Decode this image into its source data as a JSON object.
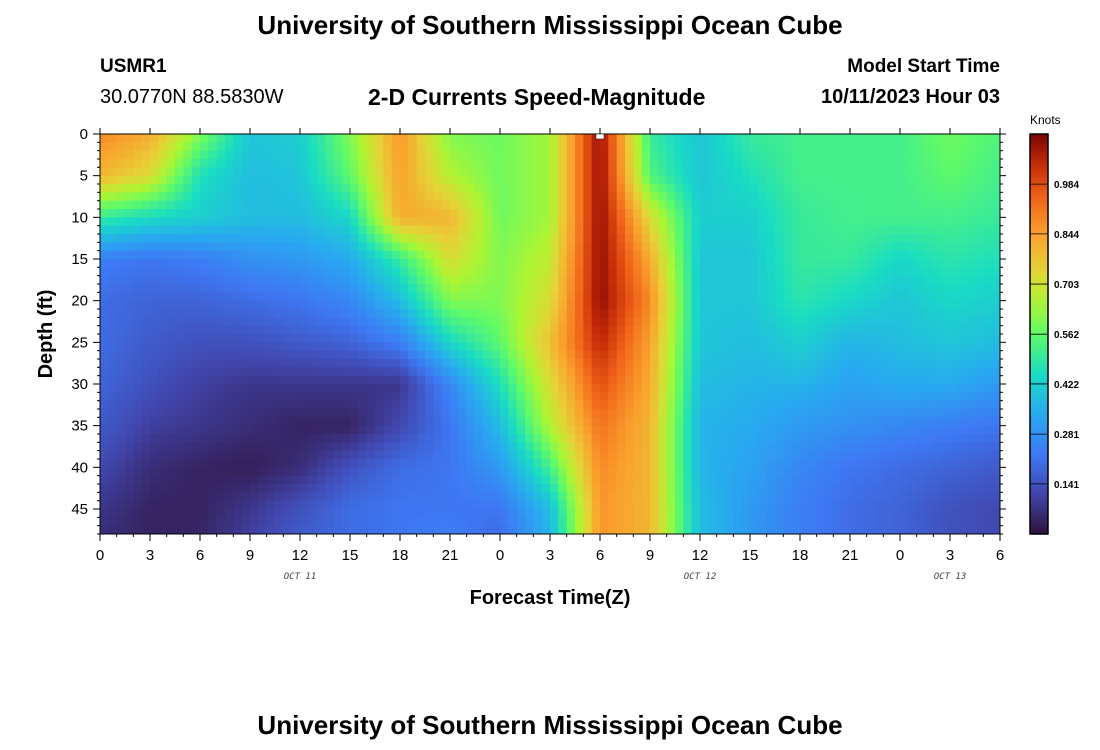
{
  "header": {
    "title": "University of Southern Mississippi Ocean Cube",
    "station": "USMR1",
    "coordinates": "30.0770N  88.5830W",
    "subtitle": "2-D Currents Speed-Magnitude",
    "model_start_label": "Model Start Time",
    "model_start_value": "10/11/2023 Hour 03"
  },
  "footer": {
    "title": "University of Southern Mississippi Ocean Cube"
  },
  "chart_data": {
    "type": "heatmap",
    "title": "2-D Currents Speed-Magnitude",
    "xlabel": "Forecast Time(Z)",
    "ylabel": "Depth (ft)",
    "x_unit": "hours since 10/11 00Z",
    "x_range": [
      0,
      54
    ],
    "x_ticks": [
      0,
      3,
      6,
      9,
      12,
      15,
      18,
      21,
      24,
      27,
      30,
      33,
      36,
      39,
      42,
      45,
      48,
      51,
      54
    ],
    "x_tick_labels": [
      "0",
      "3",
      "6",
      "9",
      "12",
      "15",
      "18",
      "21",
      "0",
      "3",
      "6",
      "9",
      "12",
      "15",
      "18",
      "21",
      "0",
      "3",
      "6"
    ],
    "day_labels": [
      {
        "label": "OCT 11",
        "x": 12
      },
      {
        "label": "OCT 12",
        "x": 36
      },
      {
        "label": "OCT 13",
        "x": 51
      }
    ],
    "y_range": [
      0,
      48
    ],
    "y_ticks": [
      0,
      5,
      10,
      15,
      20,
      25,
      30,
      35,
      40,
      45
    ],
    "y_reversed": true,
    "colorbar": {
      "units": "Knots",
      "min": 0,
      "max": 1.125,
      "ticks": [
        0.141,
        0.281,
        0.422,
        0.562,
        0.703,
        0.844,
        0.984
      ],
      "tick_labels": [
        "0.141",
        "0.281",
        "0.422",
        "0.562",
        "0.703",
        "0.844",
        "0.984"
      ]
    },
    "marker": {
      "x": 30,
      "y": 0
    },
    "grid_x": [
      0,
      3,
      6,
      9,
      12,
      15,
      18,
      21,
      24,
      27,
      30,
      33,
      36,
      39,
      42,
      45,
      48,
      51,
      54
    ],
    "grid_y": [
      0,
      5,
      10,
      15,
      20,
      25,
      30,
      35,
      40,
      45,
      48
    ],
    "values": [
      [
        0.88,
        0.82,
        0.6,
        0.4,
        0.42,
        0.6,
        0.86,
        0.6,
        0.58,
        0.64,
        1.1,
        0.5,
        0.4,
        0.5,
        0.52,
        0.52,
        0.52,
        0.58,
        0.54
      ],
      [
        0.8,
        0.72,
        0.46,
        0.38,
        0.4,
        0.56,
        0.84,
        0.66,
        0.58,
        0.64,
        1.1,
        0.54,
        0.4,
        0.46,
        0.52,
        0.52,
        0.52,
        0.56,
        0.52
      ],
      [
        0.5,
        0.45,
        0.42,
        0.38,
        0.38,
        0.44,
        0.82,
        0.8,
        0.58,
        0.64,
        1.1,
        0.72,
        0.42,
        0.42,
        0.5,
        0.52,
        0.52,
        0.52,
        0.5
      ],
      [
        0.24,
        0.22,
        0.24,
        0.28,
        0.3,
        0.34,
        0.5,
        0.72,
        0.6,
        0.68,
        1.1,
        0.82,
        0.4,
        0.4,
        0.5,
        0.5,
        0.44,
        0.48,
        0.46
      ],
      [
        0.2,
        0.18,
        0.18,
        0.2,
        0.22,
        0.26,
        0.38,
        0.6,
        0.6,
        0.72,
        1.1,
        0.88,
        0.4,
        0.4,
        0.48,
        0.44,
        0.4,
        0.44,
        0.42
      ],
      [
        0.2,
        0.16,
        0.14,
        0.14,
        0.16,
        0.18,
        0.24,
        0.44,
        0.56,
        0.78,
        1.05,
        0.84,
        0.4,
        0.38,
        0.42,
        0.36,
        0.38,
        0.4,
        0.38
      ],
      [
        0.18,
        0.14,
        0.1,
        0.08,
        0.08,
        0.08,
        0.08,
        0.26,
        0.46,
        0.72,
        0.98,
        0.82,
        0.38,
        0.36,
        0.36,
        0.32,
        0.34,
        0.34,
        0.3
      ],
      [
        0.16,
        0.1,
        0.08,
        0.06,
        0.04,
        0.04,
        0.12,
        0.22,
        0.38,
        0.66,
        0.92,
        0.8,
        0.36,
        0.34,
        0.3,
        0.28,
        0.26,
        0.24,
        0.22
      ],
      [
        0.12,
        0.06,
        0.04,
        0.03,
        0.06,
        0.14,
        0.2,
        0.22,
        0.3,
        0.52,
        0.88,
        0.8,
        0.36,
        0.32,
        0.26,
        0.22,
        0.2,
        0.18,
        0.16
      ],
      [
        0.08,
        0.04,
        0.04,
        0.08,
        0.14,
        0.2,
        0.22,
        0.22,
        0.22,
        0.38,
        0.86,
        0.8,
        0.38,
        0.3,
        0.24,
        0.2,
        0.18,
        0.14,
        0.12
      ],
      [
        0.06,
        0.04,
        0.04,
        0.1,
        0.16,
        0.2,
        0.22,
        0.24,
        0.2,
        0.36,
        0.86,
        0.8,
        0.38,
        0.3,
        0.24,
        0.2,
        0.18,
        0.14,
        0.12
      ]
    ]
  }
}
